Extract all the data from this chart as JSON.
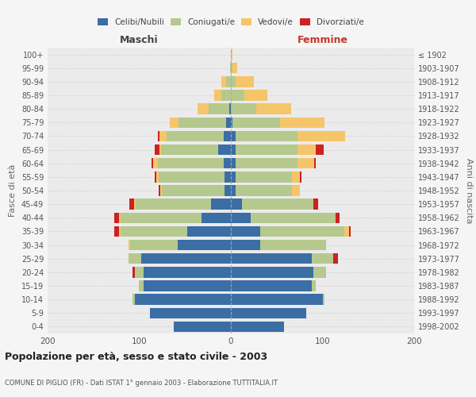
{
  "age_groups": [
    "0-4",
    "5-9",
    "10-14",
    "15-19",
    "20-24",
    "25-29",
    "30-34",
    "35-39",
    "40-44",
    "45-49",
    "50-54",
    "55-59",
    "60-64",
    "65-69",
    "70-74",
    "75-79",
    "80-84",
    "85-89",
    "90-94",
    "95-99",
    "100+"
  ],
  "birth_years": [
    "1998-2002",
    "1993-1997",
    "1988-1992",
    "1983-1987",
    "1978-1982",
    "1973-1977",
    "1968-1972",
    "1963-1967",
    "1958-1962",
    "1953-1957",
    "1948-1952",
    "1943-1947",
    "1938-1942",
    "1933-1937",
    "1928-1932",
    "1923-1927",
    "1918-1922",
    "1913-1917",
    "1908-1912",
    "1903-1907",
    "≤ 1902"
  ],
  "maschi_celibi": [
    62,
    88,
    105,
    95,
    95,
    98,
    58,
    48,
    32,
    22,
    7,
    7,
    8,
    14,
    8,
    5,
    2,
    0,
    0,
    0,
    0
  ],
  "maschi_coniugati": [
    0,
    0,
    2,
    5,
    10,
    14,
    52,
    72,
    88,
    82,
    68,
    72,
    72,
    62,
    62,
    52,
    22,
    10,
    5,
    1,
    0
  ],
  "maschi_vedovi": [
    0,
    0,
    0,
    0,
    0,
    0,
    2,
    2,
    2,
    2,
    2,
    2,
    5,
    2,
    8,
    10,
    12,
    8,
    5,
    0,
    0
  ],
  "maschi_divorziati": [
    0,
    0,
    0,
    0,
    2,
    0,
    0,
    5,
    5,
    5,
    2,
    2,
    2,
    5,
    2,
    0,
    0,
    0,
    0,
    0,
    0
  ],
  "femmine_celibi": [
    58,
    82,
    100,
    88,
    90,
    88,
    32,
    32,
    22,
    12,
    5,
    5,
    5,
    5,
    5,
    2,
    0,
    0,
    0,
    0,
    0
  ],
  "femmine_coniugati": [
    0,
    0,
    2,
    5,
    14,
    24,
    72,
    92,
    92,
    78,
    62,
    62,
    68,
    68,
    68,
    52,
    28,
    15,
    5,
    2,
    0
  ],
  "femmine_vedovi": [
    0,
    0,
    0,
    0,
    0,
    0,
    0,
    5,
    0,
    0,
    8,
    8,
    18,
    20,
    52,
    48,
    38,
    25,
    20,
    5,
    2
  ],
  "femmine_divorziati": [
    0,
    0,
    0,
    0,
    0,
    5,
    0,
    2,
    5,
    5,
    0,
    2,
    2,
    8,
    0,
    0,
    0,
    0,
    0,
    0,
    0
  ],
  "color_celibi": "#3A6EA5",
  "color_coniugati": "#B5C98E",
  "color_vedovi": "#F5C56A",
  "color_divorziati": "#CC2222",
  "xlim": 200,
  "title": "Popolazione per età, sesso e stato civile - 2003",
  "subtitle": "COMUNE DI PIGLIO (FR) - Dati ISTAT 1° gennaio 2003 - Elaborazione TUTTITALIA.IT",
  "ylabel_left": "Fasce di età",
  "ylabel_right": "Anni di nascita",
  "label_maschi": "Maschi",
  "label_femmine": "Femmine",
  "legend_labels": [
    "Celibi/Nubili",
    "Coniugati/e",
    "Vedovi/e",
    "Divorziati/e"
  ],
  "bg_color": "#f5f5f5",
  "plot_bg": "#ebebeb"
}
